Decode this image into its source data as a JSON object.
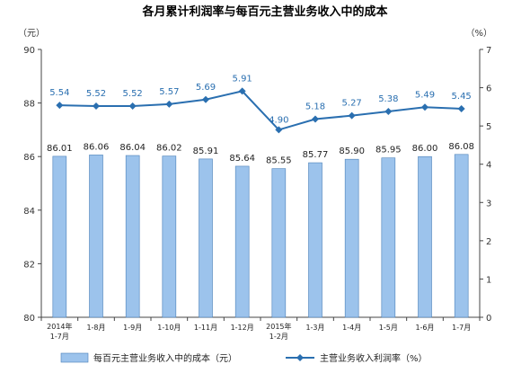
{
  "chart_data": {
    "type": "bar+line",
    "title": "各月累计利润率与每百元主营业务收入中的成本",
    "left_unit": "（元）",
    "right_unit": "（%）",
    "categories": [
      [
        "2014年",
        "1-7月"
      ],
      [
        "1-8月"
      ],
      [
        "1-9月"
      ],
      [
        "1-10月"
      ],
      [
        "1-11月"
      ],
      [
        "1-12月"
      ],
      [
        "2015年",
        "1-2月"
      ],
      [
        "1-3月"
      ],
      [
        "1-4月"
      ],
      [
        "1-5月"
      ],
      [
        "1-6月"
      ],
      [
        "1-7月"
      ]
    ],
    "series": [
      {
        "name": "每百元主营业务收入中的成本（元）",
        "kind": "bar",
        "axis": "left",
        "color": "#9cc3ec",
        "values": [
          86.01,
          86.06,
          86.04,
          86.02,
          85.91,
          85.64,
          85.55,
          85.77,
          85.9,
          85.95,
          86.0,
          86.08
        ],
        "labels": [
          "86.01",
          "86.06",
          "86.04",
          "86.02",
          "85.91",
          "85.64",
          "85.55",
          "85.77",
          "85.90",
          "85.95",
          "86.00",
          "86.08"
        ]
      },
      {
        "name": "主营业务收入利润率（%）",
        "kind": "line",
        "axis": "right",
        "color": "#2a6fb0",
        "values": [
          5.54,
          5.52,
          5.52,
          5.57,
          5.69,
          5.91,
          4.9,
          5.18,
          5.27,
          5.38,
          5.49,
          5.45
        ],
        "labels": [
          "5.54",
          "5.52",
          "5.52",
          "5.57",
          "5.69",
          "5.91",
          "4.90",
          "5.18",
          "5.27",
          "5.38",
          "5.49",
          "5.45"
        ]
      }
    ],
    "left_axis": {
      "min": 80,
      "max": 90,
      "ticks": [
        "80",
        "82",
        "84",
        "86",
        "88",
        "90"
      ]
    },
    "right_axis": {
      "min": 0,
      "max": 7,
      "ticks": [
        "0",
        "1",
        "2",
        "3",
        "4",
        "5",
        "6",
        "7"
      ]
    },
    "legend_position": "bottom",
    "grid": false
  }
}
